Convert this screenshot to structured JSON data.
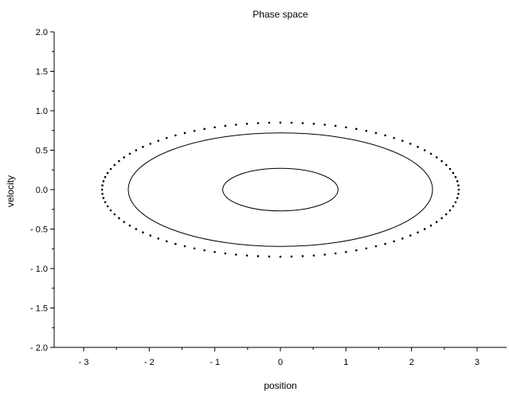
{
  "chart_data": {
    "type": "line",
    "title": "Phase space",
    "xlabel": "position",
    "ylabel": "velocity",
    "xlim": [
      -3.45,
      3.45
    ],
    "ylim": [
      -2.0,
      2.0
    ],
    "grid": false,
    "x_ticks": [
      -3,
      -2,
      -1,
      0,
      1,
      2,
      3
    ],
    "x_tick_labels": [
      "- 3",
      "- 2",
      "- 1",
      "0",
      "1",
      "2",
      "3"
    ],
    "y_ticks": [
      2.0,
      1.5,
      1.0,
      0.5,
      0.0,
      -0.5,
      -1.0,
      -1.5,
      -2.0
    ],
    "y_tick_labels": [
      "2.0",
      "1.5",
      "1.0",
      "0.5",
      "0.0",
      "- 0.5",
      "- 1.0",
      "- 1.5",
      "- 2.0"
    ],
    "series": [
      {
        "style": "solid",
        "center": [
          0,
          0
        ],
        "x_radius": 0.88,
        "y_radius": 0.27,
        "color": "#000000"
      },
      {
        "style": "solid",
        "center": [
          0,
          0
        ],
        "x_radius": 2.32,
        "y_radius": 0.72,
        "color": "#000000"
      },
      {
        "style": "dotted",
        "center": [
          0,
          0
        ],
        "x_radius": 2.72,
        "y_radius": 0.85,
        "points": 100,
        "color": "#000000"
      }
    ]
  }
}
